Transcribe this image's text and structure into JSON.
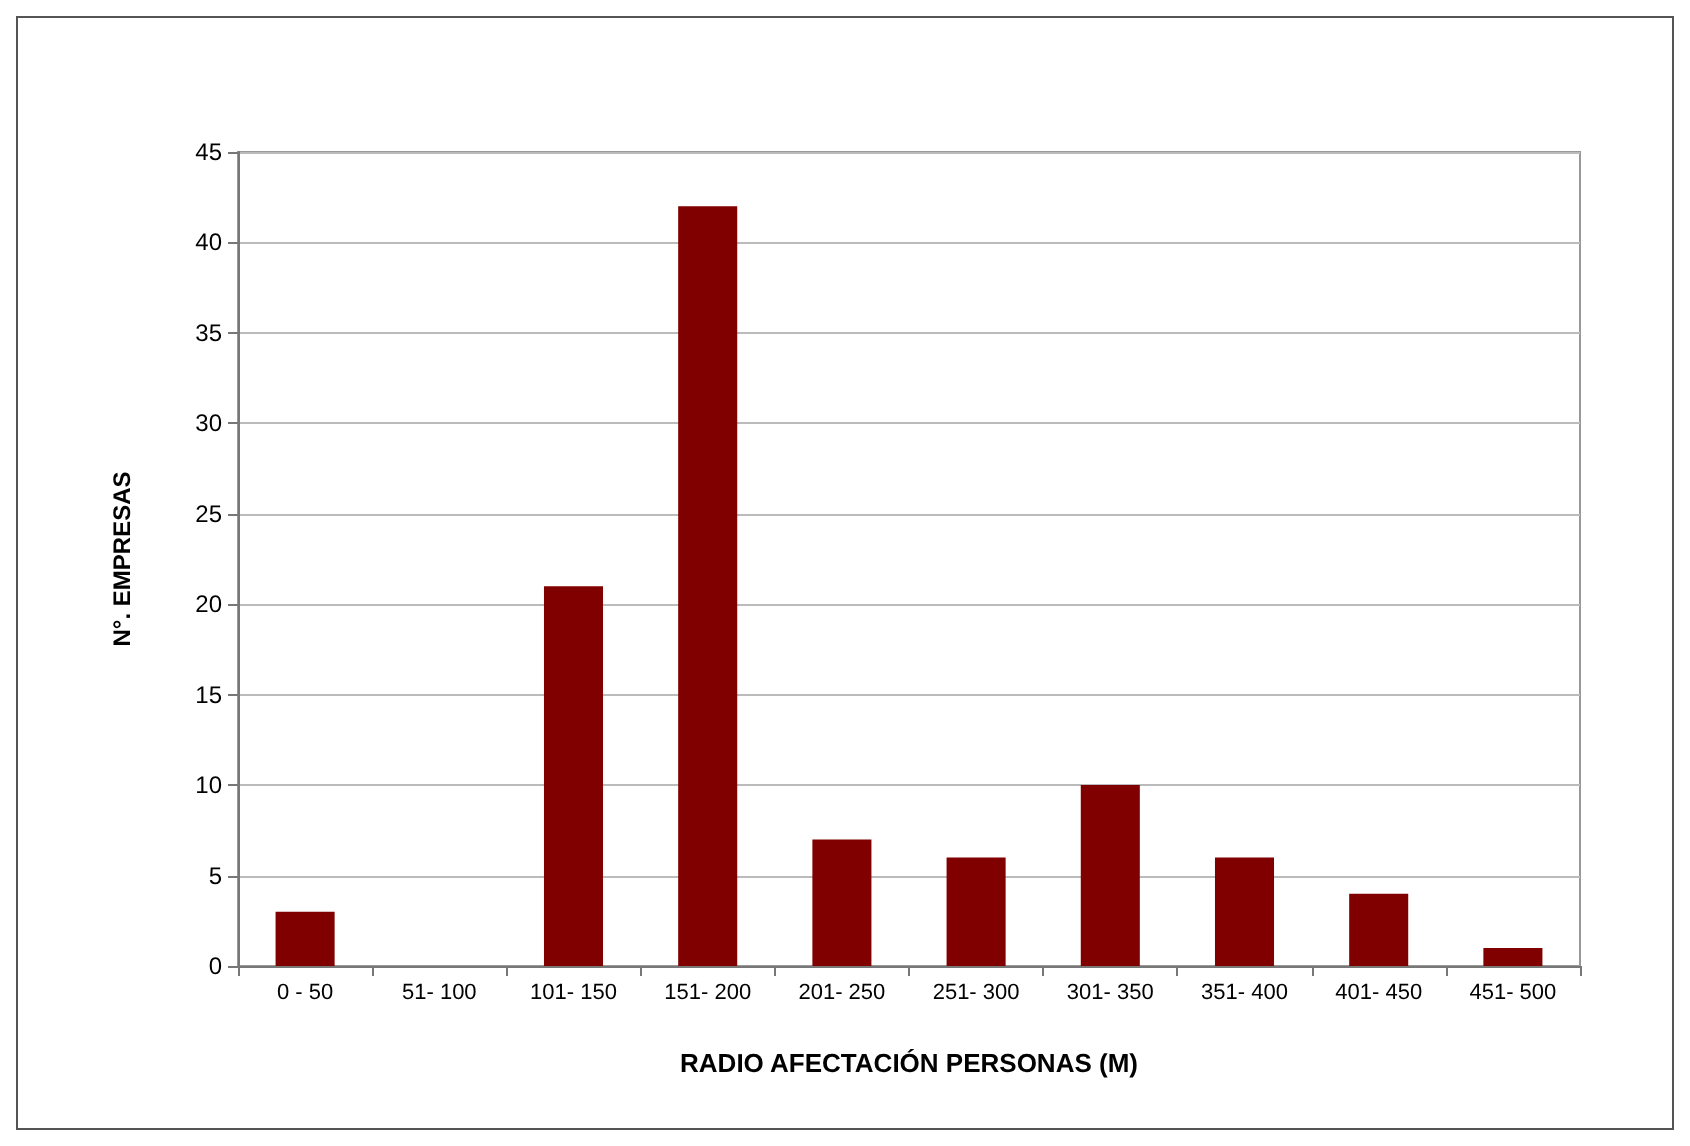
{
  "chart_data": {
    "type": "bar",
    "xlabel": "RADIO AFECTACIÓN PERSONAS (M)",
    "ylabel": "N°. EMPRESAS",
    "categories": [
      "0 - 50",
      "51- 100",
      "101- 150",
      "151- 200",
      "201- 250",
      "251- 300",
      "301- 350",
      "351- 400",
      "401- 450",
      "451- 500"
    ],
    "values": [
      3,
      0,
      21,
      42,
      7,
      6,
      10,
      6,
      4,
      1
    ],
    "color": "#800000",
    "ylim": [
      0,
      45
    ],
    "yticks": [
      0,
      5,
      10,
      15,
      20,
      25,
      30,
      35,
      40,
      45
    ],
    "grid": "y"
  }
}
